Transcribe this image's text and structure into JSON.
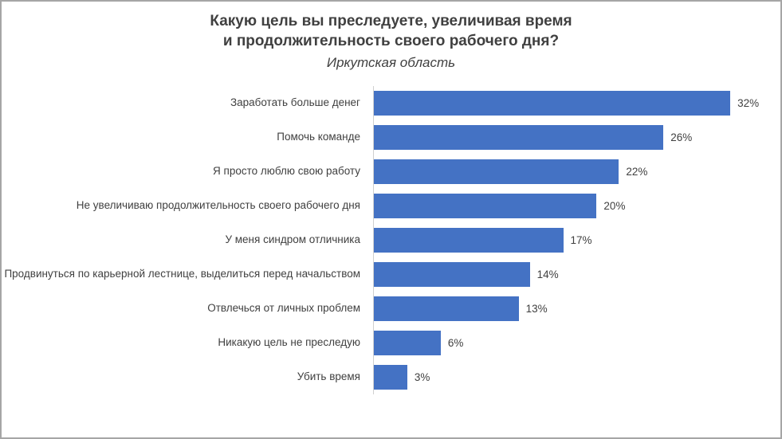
{
  "header": {
    "title": "Какую цель вы преследуете, увеличивая время\nи продолжительность своего рабочего дня?",
    "subtitle": "Иркутская область"
  },
  "colors": {
    "bar": "#4472c4",
    "title_text": "#404040",
    "axis_line": "#d0d0d0",
    "frame_border": "#a6a6a6"
  },
  "chart_data": {
    "type": "bar",
    "orientation": "horizontal",
    "title": "Какую цель вы преследуете, увеличивая время и продолжительность своего рабочего дня?",
    "subtitle": "Иркутская область",
    "categories": [
      "Заработать больше денег",
      "Помочь команде",
      "Я просто люблю свою работу",
      "Не увеличиваю продолжительность своего рабочего дня",
      "У меня синдром отличника",
      "Продвинуться по карьерной лестнице, выделиться перед начальством",
      "Отвлечься от личных проблем",
      "Никакую цель не преследую",
      "Убить время"
    ],
    "values": [
      32,
      26,
      22,
      20,
      17,
      14,
      13,
      6,
      3
    ],
    "value_labels": [
      "32%",
      "26%",
      "22%",
      "20%",
      "17%",
      "14%",
      "13%",
      "6%",
      "3%"
    ],
    "xlabel": "",
    "ylabel": "",
    "xlim": [
      0,
      35.5
    ],
    "grid": false,
    "legend": false,
    "data_labels": "outside-end"
  }
}
